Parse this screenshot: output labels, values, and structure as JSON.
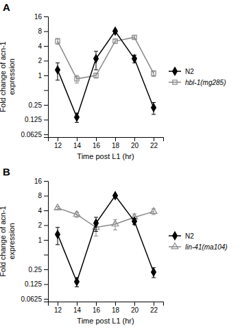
{
  "chart_data": [
    {
      "type": "line",
      "title": "A",
      "x_label": "Time post L1 (hr)",
      "y_label": "Fold change of acn-1\nexpression",
      "x": [
        12,
        14,
        16,
        18,
        20,
        22
      ],
      "xlim": [
        11,
        23
      ],
      "xticks": [
        12,
        14,
        16,
        18,
        20,
        22
      ],
      "ylim": [
        0.055,
        16
      ],
      "yticks": [
        0.0625,
        0.125,
        0.25,
        {
          "value": 0.5,
          "label": ""
        },
        1,
        2,
        4,
        8,
        16
      ],
      "log": "y",
      "grid": false,
      "legend": "right",
      "series": [
        {
          "name": "hbl-1(mg285)",
          "color": "#888888",
          "marker": "square",
          "values": [
            5.0,
            0.85,
            1.0,
            5.0,
            6.0,
            1.1
          ],
          "errors": [
            0.7,
            0.15,
            0.12,
            0.5,
            0.5,
            0.15
          ]
        },
        {
          "name": "N2",
          "color": "#000000",
          "marker": "diamond",
          "values": [
            1.3,
            0.14,
            2.2,
            8.0,
            2.2,
            0.22
          ],
          "errors": [
            0.5,
            0.03,
            0.9,
            0.5,
            0.4,
            0.06
          ]
        }
      ]
    },
    {
      "type": "line",
      "title": "B",
      "x_label": "Time post L1 (hr)",
      "y_label": "Fold change of acn-1\nexpression",
      "x": [
        12,
        14,
        16,
        18,
        20,
        22
      ],
      "xlim": [
        11,
        23
      ],
      "xticks": [
        12,
        14,
        16,
        18,
        20,
        22
      ],
      "ylim": [
        0.055,
        16
      ],
      "yticks": [
        0.0625,
        0.125,
        0.25,
        {
          "value": 0.5,
          "label": ""
        },
        1,
        2,
        4,
        8,
        16
      ],
      "log": "y",
      "grid": false,
      "legend": "right",
      "series": [
        {
          "name": "lin-41(ma104)",
          "color": "#888888",
          "marker": "triangle",
          "values": [
            4.5,
            3.3,
            1.8,
            2.1,
            2.9,
            3.8
          ],
          "errors": [
            0.3,
            0.4,
            0.6,
            0.5,
            0.5,
            0.5
          ]
        },
        {
          "name": "N2",
          "color": "#000000",
          "marker": "diamond",
          "values": [
            1.3,
            0.14,
            2.2,
            8.0,
            2.4,
            0.22
          ],
          "errors": [
            0.5,
            0.03,
            0.7,
            0.5,
            0.35,
            0.05
          ]
        }
      ]
    }
  ]
}
